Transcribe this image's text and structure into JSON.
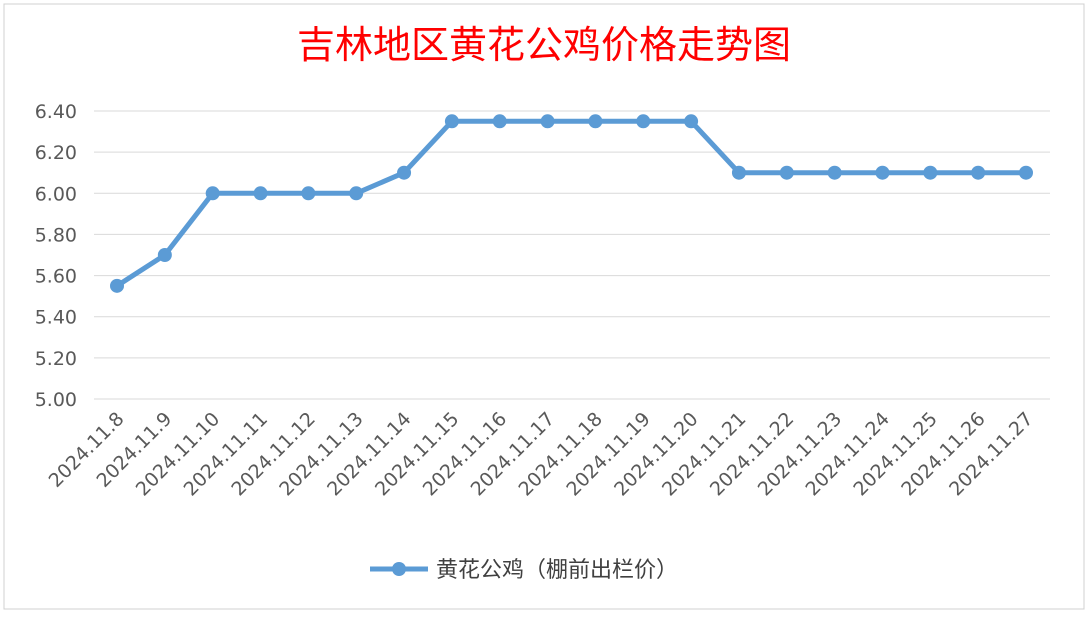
{
  "chart_data": {
    "type": "line",
    "title": "吉林地区黄花公鸡价格走势图",
    "xlabel": "",
    "ylabel": "",
    "categories": [
      "2024.11.8",
      "2024.11.9",
      "2024.11.10",
      "2024.11.11",
      "2024.11.12",
      "2024.11.13",
      "2024.11.14",
      "2024.11.15",
      "2024.11.16",
      "2024.11.17",
      "2024.11.18",
      "2024.11.19",
      "2024.11.20",
      "2024.11.21",
      "2024.11.22",
      "2024.11.23",
      "2024.11.24",
      "2024.11.25",
      "2024.11.26",
      "2024.11.27"
    ],
    "series": [
      {
        "name": "黄花公鸡（棚前出栏价）",
        "values": [
          5.55,
          5.7,
          6.0,
          6.0,
          6.0,
          6.0,
          6.1,
          6.35,
          6.35,
          6.35,
          6.35,
          6.35,
          6.35,
          6.1,
          6.1,
          6.1,
          6.1,
          6.1,
          6.1,
          6.1
        ]
      }
    ],
    "ylim": [
      5.0,
      6.4
    ],
    "yticks": [
      "5.00",
      "5.20",
      "5.40",
      "5.60",
      "5.80",
      "6.00",
      "6.20",
      "6.40"
    ],
    "grid": "horizontal",
    "legend_position": "bottom"
  },
  "colors": {
    "title": "#ff0000",
    "series": "#5b9bd5",
    "grid": "#d9d9d9",
    "axis_text": "#595959",
    "frame": "#d0d0d0"
  }
}
